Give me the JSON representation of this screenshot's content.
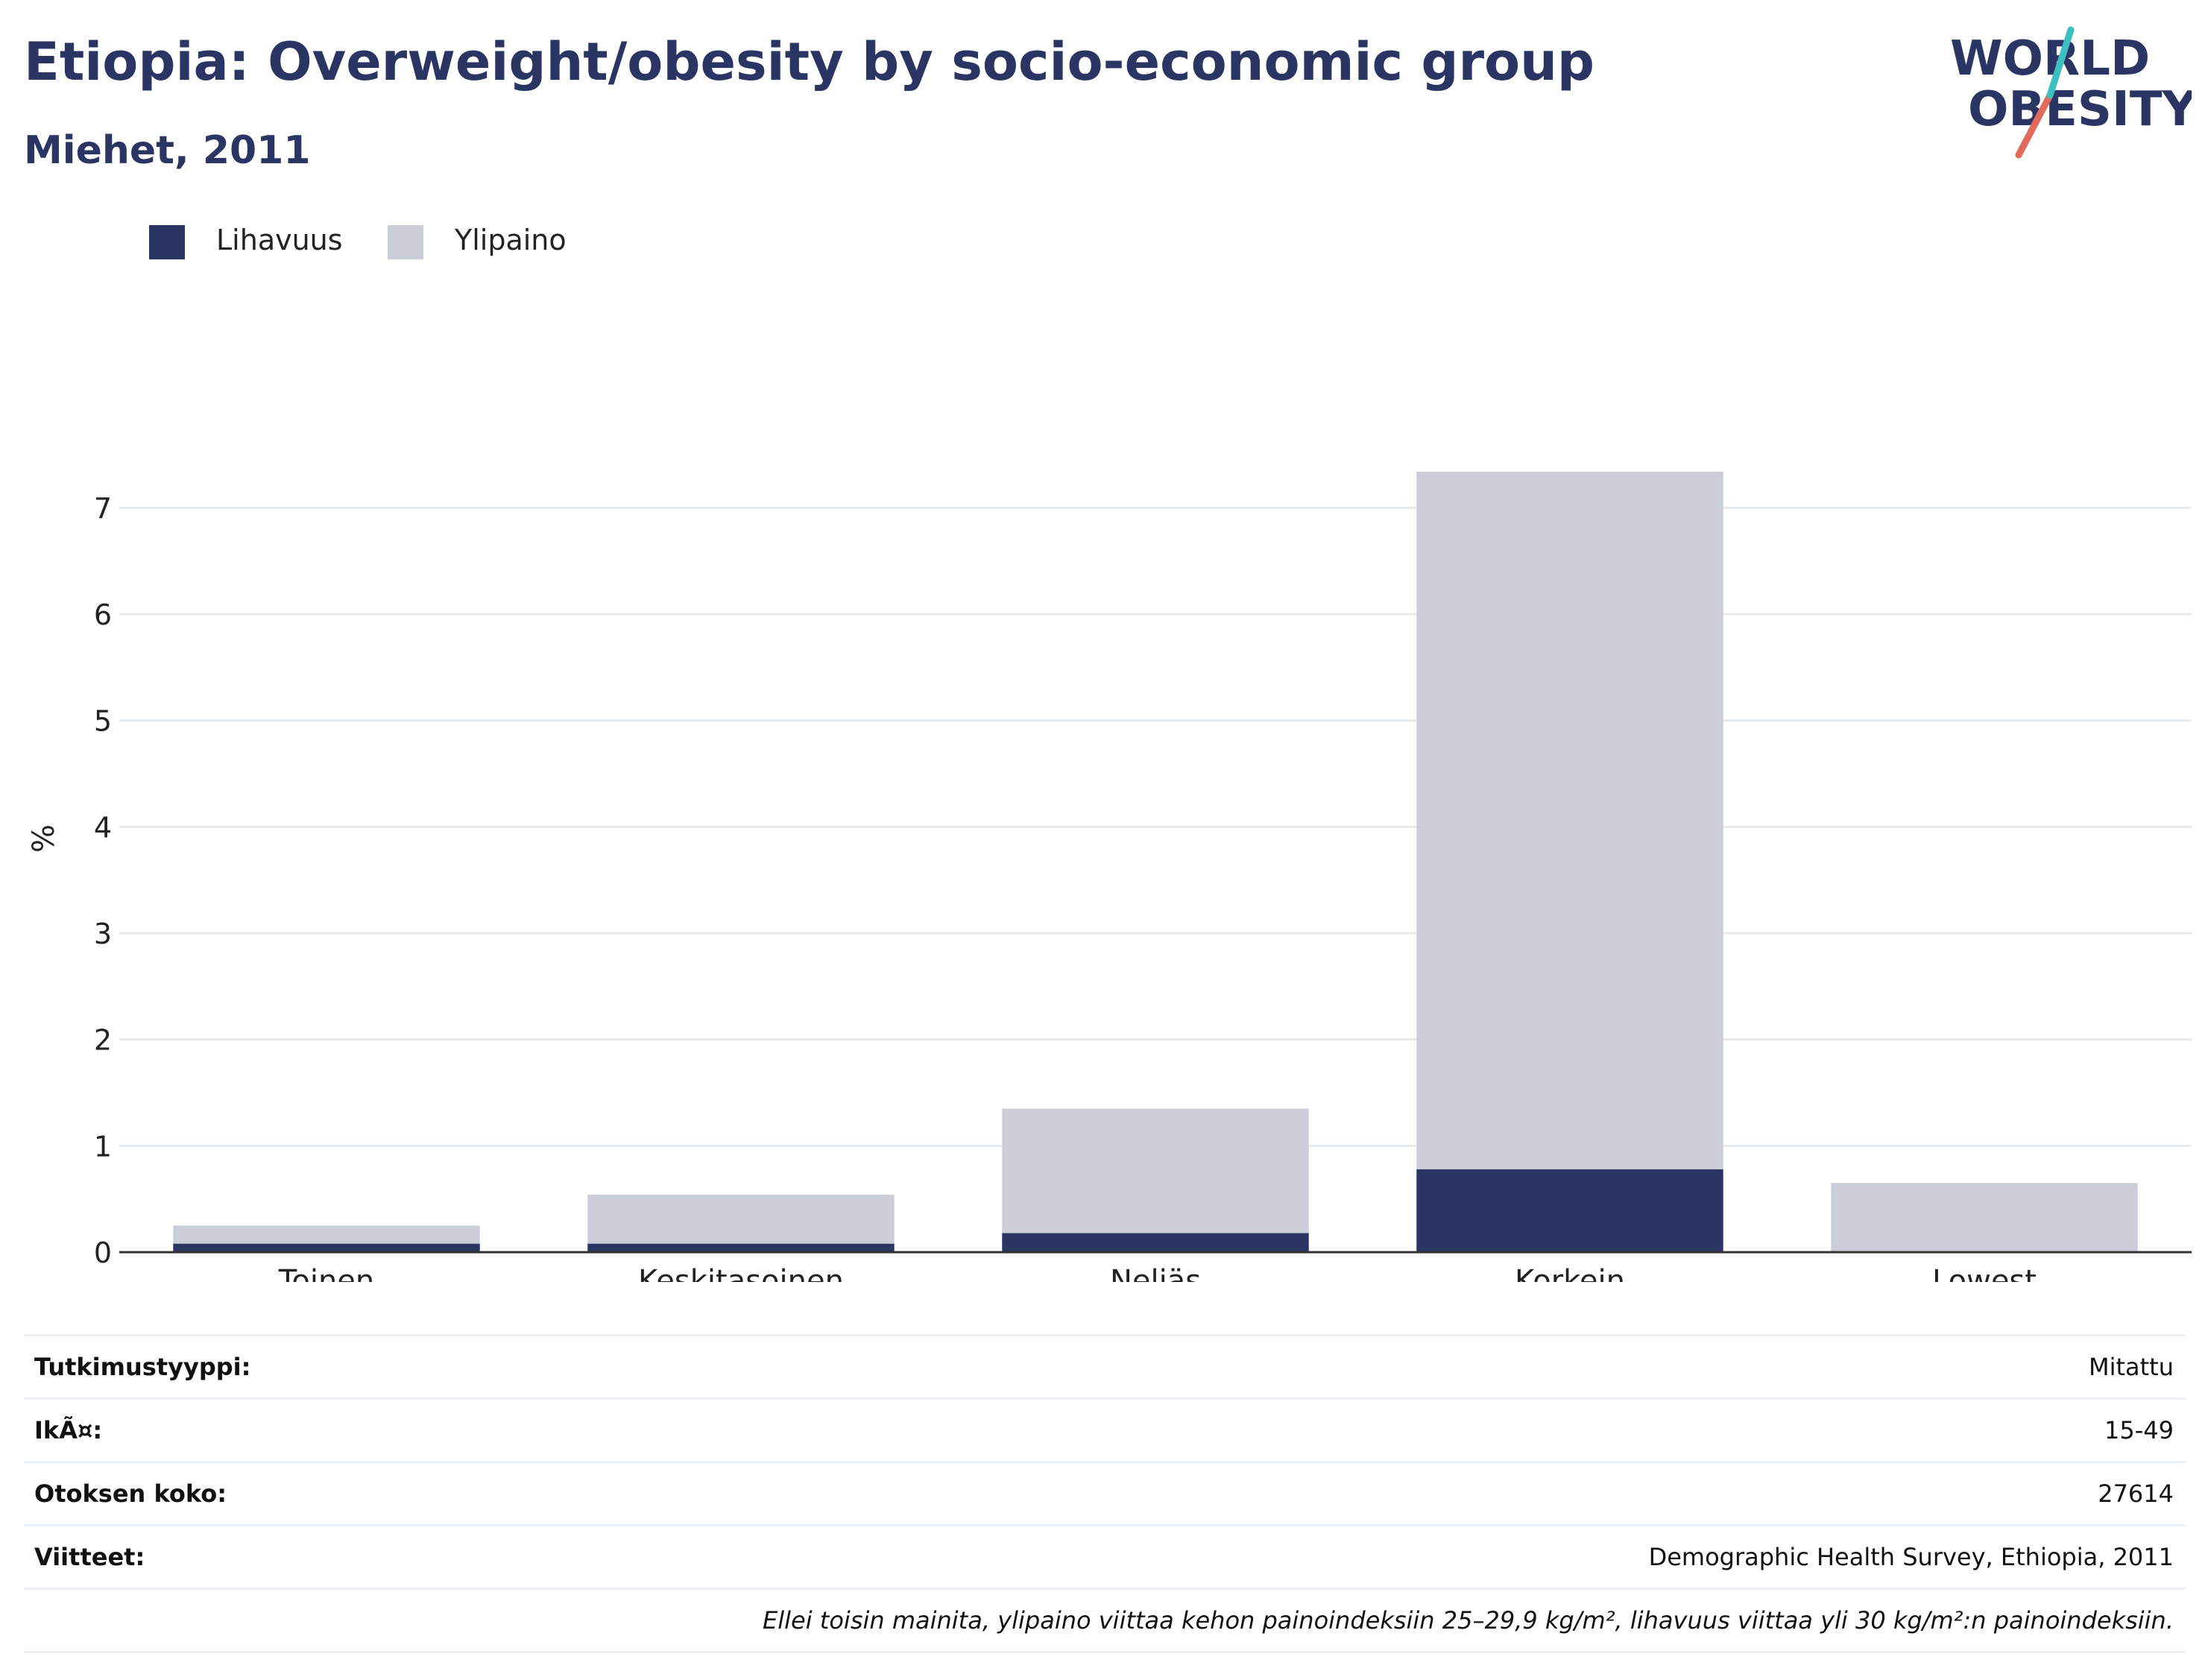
{
  "header": {
    "title": "Etiopia: Overweight/obesity by socio-economic group",
    "subtitle": "Miehet, 2011"
  },
  "logo": {
    "line1": "WORLD",
    "line2": "OBESITY"
  },
  "colors": {
    "obesity": "#2b3563",
    "overweight": "#cbcdd8",
    "title": "#2b3563",
    "logo_teal": "#3dbfbf",
    "logo_coral": "#e26a5b",
    "gridline": "#e8ebee",
    "axis": "#333333"
  },
  "legend": [
    {
      "label": "Lihavuus",
      "color": "#2b3563"
    },
    {
      "label": "Ylipaino",
      "color": "#cbcdd8"
    }
  ],
  "chart_data": {
    "type": "bar",
    "stacked": true,
    "categories": [
      "Toinen",
      "Keskitasoinen",
      "Neljäs",
      "Korkein",
      "Lowest"
    ],
    "series": [
      {
        "name": "Lihavuus",
        "values": [
          0.08,
          0.08,
          0.18,
          0.78,
          0
        ]
      },
      {
        "name": "Ylipaino",
        "values": [
          0.17,
          0.46,
          1.17,
          6.56,
          0.65
        ]
      }
    ],
    "ylabel": "%",
    "xlabel": "",
    "ylim": [
      0,
      7.5
    ],
    "yticks": [
      0,
      1,
      2,
      3,
      4,
      5,
      6,
      7
    ],
    "grid": true
  },
  "meta": {
    "rows": [
      {
        "key": "Tutkimustyyppi:",
        "value": "Mitattu"
      },
      {
        "key": "IkÃ¤:",
        "value": "15-49"
      },
      {
        "key": "Otoksen koko:",
        "value": "27614"
      },
      {
        "key": "Viitteet:",
        "value": "Demographic Health Survey, Ethiopia, 2011"
      }
    ],
    "note": "Ellei toisin mainita, ylipaino viittaa kehon painoindeksiin 25–29,9 kg/m², lihavuus viittaa yli 30 kg/m²:n painoindeksiin."
  }
}
